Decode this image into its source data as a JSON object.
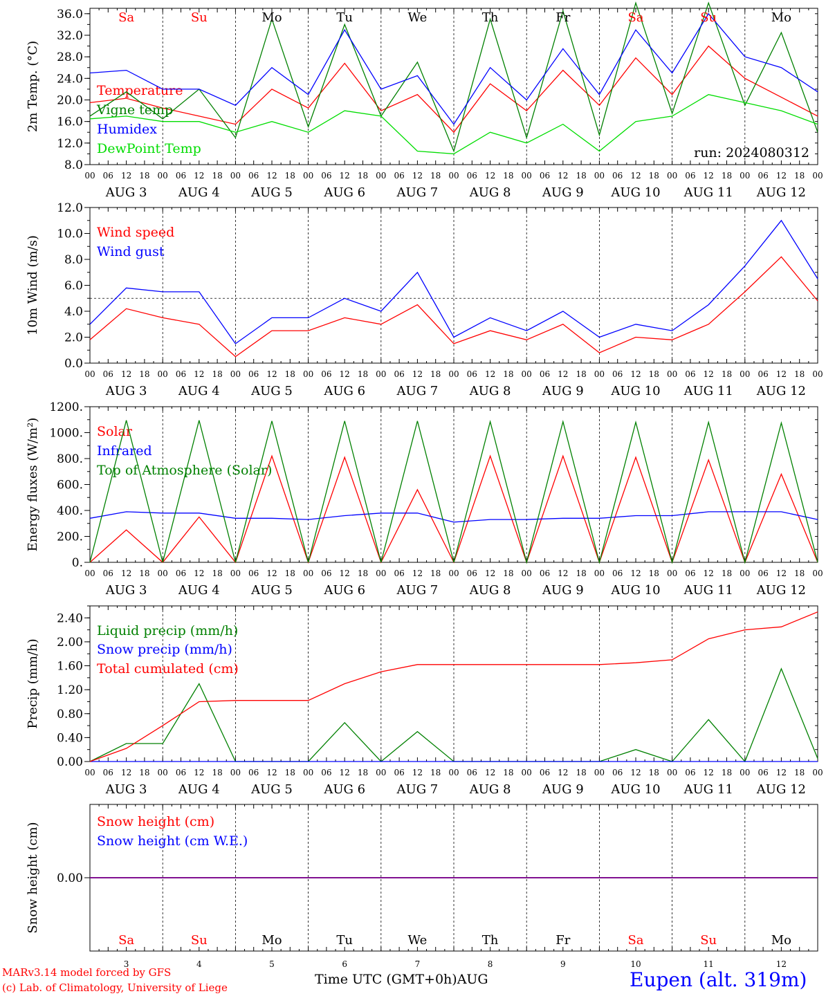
{
  "days": [
    "3",
    "4",
    "5",
    "6",
    "7",
    "8",
    "9",
    "10",
    "11",
    "12"
  ],
  "month": "AUG",
  "hour_labels": [
    "00",
    "06",
    "12",
    "18"
  ],
  "end_hour_label": "00",
  "weekdays": [
    {
      "label": "Sa",
      "weekend": true
    },
    {
      "label": "Su",
      "weekend": true
    },
    {
      "label": "Mo",
      "weekend": false
    },
    {
      "label": "Tu",
      "weekend": false
    },
    {
      "label": "We",
      "weekend": false
    },
    {
      "label": "Th",
      "weekend": false
    },
    {
      "label": "Fr",
      "weekend": false
    },
    {
      "label": "Sa",
      "weekend": true
    },
    {
      "label": "Su",
      "weekend": true
    },
    {
      "label": "Mo",
      "weekend": false
    }
  ],
  "colors": {
    "red": "#ff0000",
    "green": "#008000",
    "blue": "#0000ff",
    "lime": "#00dd00",
    "weekend": "#ff0000",
    "purple": "#800080"
  },
  "run_label": "run: 2024080312",
  "xlabel": "Time UTC (GMT+0h)",
  "xlabel_month": "AUG",
  "footer": {
    "model": "MARv3.14 model forced by GFS",
    "lab": "(c) Lab. of Climatology, University of Liege",
    "station": "Eupen (alt. 319m)"
  },
  "chart_data": [
    {
      "id": "temp",
      "type": "line",
      "ylabel": "2m Temp. (°C)",
      "ylim": [
        8,
        37
      ],
      "yticks": [
        "8.0",
        "12.0",
        "16.0",
        "20.0",
        "24.0",
        "28.0",
        "32.0",
        "36.0"
      ],
      "ytick_values": [
        8,
        12,
        16,
        20,
        24,
        28,
        32,
        36
      ],
      "x_hours": [
        0,
        12,
        24,
        36,
        48,
        60,
        72,
        84,
        96,
        108,
        120,
        132,
        144,
        156,
        168,
        180,
        192,
        204,
        216,
        228,
        240
      ],
      "series": [
        {
          "name": "Temperature",
          "color": "red",
          "values": [
            19.5,
            20.3,
            18.5,
            17.0,
            15.5,
            22.0,
            18.5,
            26.8,
            18.0,
            21.0,
            14.0,
            23.0,
            18.0,
            25.5,
            19.0,
            27.8,
            21.0,
            30.0,
            24.0,
            20.5,
            17.0
          ]
        },
        {
          "name": "Vigne temp",
          "color": "green",
          "values": [
            17.0,
            21.5,
            16.5,
            22.0,
            13.0,
            35.0,
            15.0,
            34.0,
            17.0,
            27.0,
            10.5,
            35.0,
            13.0,
            36.5,
            13.5,
            38.0,
            17.5,
            38.0,
            19.0,
            32.5,
            14.0
          ]
        },
        {
          "name": "Humidex",
          "color": "blue",
          "values": [
            25.0,
            25.5,
            22.0,
            22.0,
            19.0,
            26.0,
            21.0,
            33.0,
            22.0,
            24.5,
            15.5,
            26.0,
            20.0,
            29.5,
            21.0,
            33.0,
            25.0,
            36.0,
            28.0,
            26.0,
            21.5
          ]
        },
        {
          "name": "DewPoint Temp",
          "color": "lime",
          "values": [
            16.5,
            17.0,
            16.0,
            16.0,
            14.0,
            16.0,
            14.0,
            18.0,
            17.0,
            10.5,
            10.0,
            14.0,
            12.0,
            15.5,
            10.5,
            16.0,
            17.0,
            21.0,
            19.5,
            18.0,
            15.5
          ]
        }
      ]
    },
    {
      "id": "wind",
      "type": "line",
      "ylabel": "10m Wind (m/s)",
      "ylim": [
        0,
        12
      ],
      "yticks": [
        "0.0",
        "2.0",
        "4.0",
        "6.0",
        "8.0",
        "10.0",
        "12.0"
      ],
      "ytick_values": [
        0,
        2,
        4,
        6,
        8,
        10,
        12
      ],
      "hline": 5,
      "x_hours": [
        0,
        12,
        24,
        36,
        48,
        60,
        72,
        84,
        96,
        108,
        120,
        132,
        144,
        156,
        168,
        180,
        192,
        204,
        216,
        228,
        240
      ],
      "series": [
        {
          "name": "Wind speed",
          "color": "red",
          "values": [
            1.8,
            4.2,
            3.5,
            3.0,
            0.5,
            2.5,
            2.5,
            3.5,
            3.0,
            4.5,
            1.5,
            2.5,
            1.8,
            3.0,
            0.8,
            2.0,
            1.8,
            3.0,
            5.5,
            8.2,
            4.8
          ]
        },
        {
          "name": "Wind gust",
          "color": "blue",
          "values": [
            3.0,
            5.8,
            5.5,
            5.5,
            1.5,
            3.5,
            3.5,
            5.0,
            4.0,
            7.0,
            2.0,
            3.5,
            2.5,
            4.0,
            2.0,
            3.0,
            2.5,
            4.5,
            7.5,
            11.0,
            6.5
          ]
        }
      ]
    },
    {
      "id": "flux",
      "type": "line",
      "ylabel": "Energy fluxes (W/m²)",
      "ylim": [
        0,
        1200
      ],
      "yticks": [
        "0.",
        "200.",
        "400.",
        "600.",
        "800.",
        "1000.",
        "1200."
      ],
      "ytick_values": [
        0,
        200,
        400,
        600,
        800,
        1000,
        1200
      ],
      "x_hours": [
        0,
        12,
        24,
        36,
        48,
        60,
        72,
        84,
        96,
        108,
        120,
        132,
        144,
        156,
        168,
        180,
        192,
        204,
        216,
        228,
        240
      ],
      "series": [
        {
          "name": "Solar",
          "color": "red",
          "values": [
            0,
            250,
            0,
            350,
            0,
            820,
            0,
            810,
            0,
            560,
            0,
            820,
            0,
            820,
            0,
            810,
            0,
            790,
            0,
            680,
            0
          ]
        },
        {
          "name": "Infrared",
          "color": "blue",
          "values": [
            340,
            390,
            380,
            380,
            340,
            340,
            330,
            360,
            380,
            380,
            310,
            330,
            330,
            340,
            340,
            360,
            360,
            390,
            390,
            390,
            330
          ]
        },
        {
          "name": "Top of Atmosphere (Solar)",
          "color": "green",
          "values": [
            0,
            1095,
            0,
            1095,
            0,
            1090,
            0,
            1090,
            0,
            1090,
            0,
            1085,
            0,
            1085,
            0,
            1080,
            0,
            1080,
            0,
            1075,
            0
          ]
        }
      ]
    },
    {
      "id": "precip",
      "type": "line",
      "ylabel": "Precip (mm/h)",
      "ylim": [
        0,
        2.6
      ],
      "yticks": [
        "0.00",
        "0.40",
        "0.80",
        "1.20",
        "1.60",
        "2.00",
        "2.40"
      ],
      "ytick_values": [
        0,
        0.4,
        0.8,
        1.2,
        1.6,
        2.0,
        2.4
      ],
      "x_hours": [
        0,
        12,
        24,
        36,
        48,
        60,
        72,
        84,
        96,
        108,
        120,
        132,
        144,
        156,
        168,
        180,
        192,
        204,
        216,
        228,
        240
      ],
      "series": [
        {
          "name": "Liquid precip (mm/h)",
          "color": "green",
          "values": [
            0.0,
            0.3,
            0.3,
            1.3,
            0.0,
            0.0,
            0.0,
            0.65,
            0.0,
            0.5,
            0.0,
            0.0,
            0.0,
            0.0,
            0.0,
            0.2,
            0.0,
            0.7,
            0.0,
            1.55,
            0.05
          ]
        },
        {
          "name": "Snow precip (mm/h)",
          "color": "blue",
          "values": [
            0,
            0,
            0,
            0,
            0,
            0,
            0,
            0,
            0,
            0,
            0,
            0,
            0,
            0,
            0,
            0,
            0,
            0,
            0,
            0,
            0
          ]
        },
        {
          "name": "Total cumulated (cm)",
          "color": "red",
          "values": [
            0.0,
            0.22,
            0.6,
            1.0,
            1.02,
            1.02,
            1.02,
            1.3,
            1.5,
            1.62,
            1.62,
            1.62,
            1.62,
            1.62,
            1.62,
            1.65,
            1.7,
            2.05,
            2.2,
            2.25,
            2.5
          ]
        }
      ]
    },
    {
      "id": "snow",
      "type": "line",
      "ylabel": "Snow height (cm)",
      "ylim": [
        -1,
        1
      ],
      "yticks": [
        "0.00"
      ],
      "ytick_values": [
        0
      ],
      "x_hours": [
        0,
        240
      ],
      "series": [
        {
          "name": "Snow height (cm)",
          "color": "red",
          "values": [
            0,
            0
          ]
        },
        {
          "name": "Snow height (cm W.E.)",
          "color": "blue",
          "values": [
            0,
            0
          ]
        }
      ]
    }
  ]
}
